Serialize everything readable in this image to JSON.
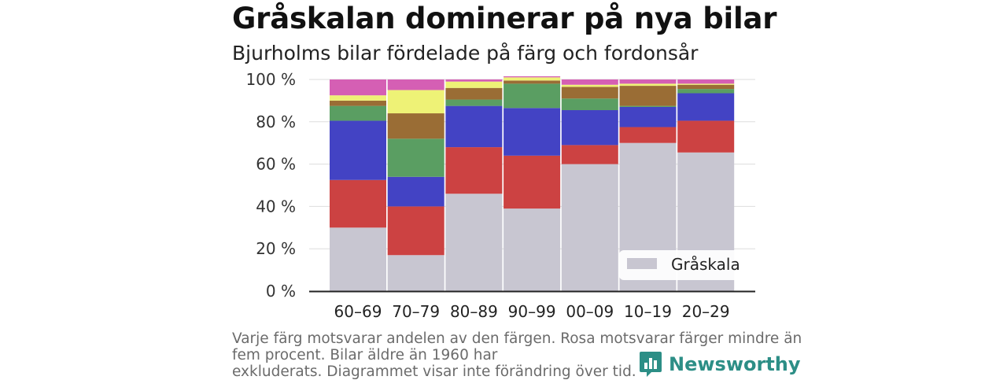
{
  "title": "Gråskalan dominerar på nya bilar",
  "subtitle": "Bjurholms bilar fördelade på färg och fordonsår",
  "footnote": {
    "line1": "Varje färg motsvarar andelen av den färgen. Rosa motsvarar färger mindre än",
    "line2": "fem procent. Bilar äldre än 1960 har",
    "line3": "exkluderats. Diagrammet visar inte förändring över tid."
  },
  "brand": {
    "name": "Newsworthy",
    "color": "#2c8e86",
    "icon": "bar-chart-bubble-icon"
  },
  "chart_data": {
    "type": "bar",
    "stacked": true,
    "categories": [
      "60–69",
      "70–79",
      "80–89",
      "90–99",
      "00–09",
      "10–19",
      "20–29"
    ],
    "ylim": [
      0,
      100
    ],
    "ytick_values": [
      0,
      20,
      40,
      60,
      80,
      100
    ],
    "ytick_labels": [
      "0 %",
      "20 %",
      "40 %",
      "60 %",
      "80 %",
      "100 %"
    ],
    "grid": true,
    "legend": {
      "position": "bottom-right",
      "visible_entries": [
        "Gråskala"
      ]
    },
    "series": [
      {
        "name": "Gråskala",
        "color": "#c8c6d1",
        "values": [
          30,
          17,
          46,
          39,
          60,
          70,
          65.5
        ]
      },
      {
        "color": "#cc4242",
        "values": [
          22.5,
          23,
          22,
          25,
          9,
          7.5,
          15
        ]
      },
      {
        "color": "#4343c4",
        "values": [
          28,
          14,
          19.5,
          22.5,
          16.5,
          9.5,
          13
        ]
      },
      {
        "color": "#5a9e62",
        "values": [
          7,
          18,
          3,
          11.5,
          5.5,
          0.5,
          2
        ]
      },
      {
        "color": "#9a6d35",
        "values": [
          2.5,
          12,
          5.5,
          1.5,
          5.5,
          9.5,
          2
        ]
      },
      {
        "color": "#eef276",
        "values": [
          2.5,
          11,
          3,
          1.5,
          1,
          1,
          0.5
        ]
      },
      {
        "color": "#d55fb4",
        "values": [
          7.5,
          5,
          1,
          0.5,
          2.5,
          2,
          2
        ]
      }
    ]
  }
}
